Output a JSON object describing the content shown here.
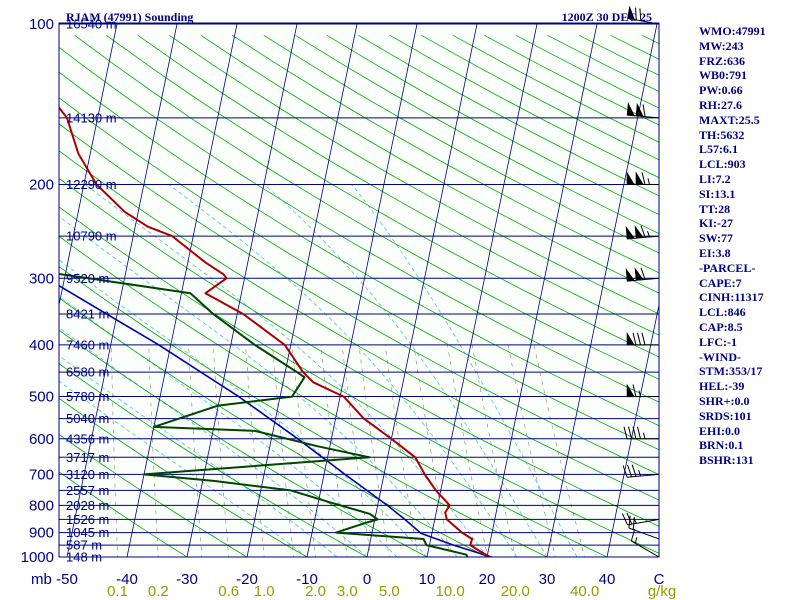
{
  "header": {
    "station_title": "RJAM (47991) Sounding",
    "time_title": "1200Z 30 DEC 25"
  },
  "indices": [
    "WMO:47991",
    "MW:243",
    "FRZ:636",
    "WB0:791",
    "PW:0.66",
    "RH:27.6",
    "MAXT:25.5",
    "TH:5632",
    "L57:6.1",
    "LCL:903",
    "LI:7.2",
    "SI:13.1",
    "TT:28",
    "KI:-27",
    "SW:77",
    "EI:3.8",
    "-PARCEL-",
    "CAPE:7",
    "CINH:11317",
    "LCL:846",
    "CAP:8.5",
    "LFC:-1",
    "-WIND-",
    "STM:353/17",
    "HEL:-39",
    "SHR+:0.0",
    "SRDS:101",
    "EHI:0.0",
    "BRN:0.1",
    "BSHR:131"
  ],
  "colors": {
    "background": "#fbfffb",
    "isobar": "#000080",
    "isotherm": "#000080",
    "dry_adiabat": "#00aa00",
    "moist_adiabat": "#55bbdd",
    "mixing_ratio": "#888866",
    "temperature": "#aa0000",
    "dewpoint": "#004400",
    "parcel": "#0000aa",
    "wind_barb": "#000000",
    "pressure_label": "#000080",
    "mixing_label": "#999900"
  },
  "chart_data": {
    "type": "skew-t",
    "title": "RJAM (47991) Sounding",
    "subtitle": "1200Z 30 DEC 25",
    "y_scale": "log",
    "ylim": [
      1000,
      100
    ],
    "xlim": [
      -50,
      50
    ],
    "pressure_axis_unit": "mb",
    "pressure_ticks": [
      100,
      200,
      300,
      400,
      500,
      600,
      700,
      800,
      900,
      1000
    ],
    "temperature_axis_unit": "C",
    "temperature_ticks": [
      -50,
      -40,
      -30,
      -20,
      -10,
      0,
      10,
      20,
      30,
      40
    ],
    "mixing_ratio_unit": "g/kg",
    "mixing_ratio_labels": [
      "0.1",
      "0.2",
      "0.6",
      "1.0",
      "2.0",
      "3.0",
      "5.0",
      "10.0",
      "20.0",
      "40.0"
    ],
    "height_labels": [
      {
        "p": 100,
        "label": "16540 m"
      },
      {
        "p": 150,
        "label": "14130 m"
      },
      {
        "p": 200,
        "label": "12290 m"
      },
      {
        "p": 250,
        "label": "10790 m"
      },
      {
        "p": 300,
        "label": "9520 m"
      },
      {
        "p": 350,
        "label": "8421 m"
      },
      {
        "p": 400,
        "label": "7460 m"
      },
      {
        "p": 450,
        "label": "6580 m"
      },
      {
        "p": 500,
        "label": "5780 m"
      },
      {
        "p": 550,
        "label": "5040 m"
      },
      {
        "p": 600,
        "label": "4356 m"
      },
      {
        "p": 650,
        "label": "3717 m"
      },
      {
        "p": 700,
        "label": "3120 m"
      },
      {
        "p": 750,
        "label": "2557 m"
      },
      {
        "p": 800,
        "label": "2028 m"
      },
      {
        "p": 850,
        "label": "1526 m"
      },
      {
        "p": 900,
        "label": "1045 m"
      },
      {
        "p": 950,
        "label": "587 m"
      },
      {
        "p": 1000,
        "label": "148 m"
      }
    ],
    "series": [
      {
        "key": "temperature",
        "points": [
          {
            "p": 1013,
            "t": 22.4
          },
          {
            "p": 1000,
            "t": 20.5
          },
          {
            "p": 975,
            "t": 18.6
          },
          {
            "p": 950,
            "t": 16.8
          },
          {
            "p": 925,
            "t": 16.9
          },
          {
            "p": 900,
            "t": 15.0
          },
          {
            "p": 850,
            "t": 12.0
          },
          {
            "p": 825,
            "t": 11.5
          },
          {
            "p": 800,
            "t": 12.0
          },
          {
            "p": 750,
            "t": 9.2
          },
          {
            "p": 700,
            "t": 6.8
          },
          {
            "p": 650,
            "t": 4.6
          },
          {
            "p": 600,
            "t": 0.0
          },
          {
            "p": 550,
            "t": -5.3
          },
          {
            "p": 500,
            "t": -9.4
          },
          {
            "p": 470,
            "t": -15.0
          },
          {
            "p": 450,
            "t": -17.0
          },
          {
            "p": 400,
            "t": -21.0
          },
          {
            "p": 350,
            "t": -29.0
          },
          {
            "p": 320,
            "t": -36.0
          },
          {
            "p": 300,
            "t": -33.0
          },
          {
            "p": 295,
            "t": -33.6
          },
          {
            "p": 280,
            "t": -37.1
          },
          {
            "p": 250,
            "t": -43.5
          },
          {
            "p": 240,
            "t": -47.9
          },
          {
            "p": 225,
            "t": -52.3
          },
          {
            "p": 200,
            "t": -57.9
          },
          {
            "p": 175,
            "t": -62.0
          },
          {
            "p": 150,
            "t": -65.1
          },
          {
            "p": 125,
            "t": -72.0
          },
          {
            "p": 100,
            "t": -81.3
          }
        ]
      },
      {
        "key": "dewpoint",
        "points": [
          {
            "p": 1013,
            "t": 17.0
          },
          {
            "p": 990,
            "t": 16.5
          },
          {
            "p": 950,
            "t": 9.5
          },
          {
            "p": 925,
            "t": 8.8
          },
          {
            "p": 900,
            "t": -6.0
          },
          {
            "p": 860,
            "t": -1.0
          },
          {
            "p": 850,
            "t": 0.5
          },
          {
            "p": 830,
            "t": -1.0
          },
          {
            "p": 790,
            "t": -8.0
          },
          {
            "p": 750,
            "t": -15.0
          },
          {
            "p": 720,
            "t": -28.0
          },
          {
            "p": 700,
            "t": -40.0
          },
          {
            "p": 690,
            "t": -33.0
          },
          {
            "p": 650,
            "t": -3.0
          },
          {
            "p": 620,
            "t": -12.0
          },
          {
            "p": 580,
            "t": -23.0
          },
          {
            "p": 570,
            "t": -40.0
          },
          {
            "p": 520,
            "t": -30.0
          },
          {
            "p": 500,
            "t": -18.0
          },
          {
            "p": 460,
            "t": -16.6
          },
          {
            "p": 450,
            "t": -18.0
          },
          {
            "p": 400,
            "t": -26.0
          },
          {
            "p": 350,
            "t": -34.0
          },
          {
            "p": 320,
            "t": -38.5
          },
          {
            "p": 300,
            "t": -56.0
          },
          {
            "p": 280,
            "t": -75.0
          },
          {
            "p": 250,
            "t": -87.0
          }
        ]
      },
      {
        "key": "parcel",
        "points": [
          {
            "p": 1013,
            "t": 22.4
          },
          {
            "p": 950,
            "t": 14.0
          },
          {
            "p": 903,
            "t": 8.2
          },
          {
            "p": 850,
            "t": 5.0
          },
          {
            "p": 800,
            "t": 1.6
          },
          {
            "p": 700,
            "t": -6.5
          },
          {
            "p": 600,
            "t": -15.6
          },
          {
            "p": 500,
            "t": -26.9
          },
          {
            "p": 400,
            "t": -42.0
          },
          {
            "p": 300,
            "t": -63.0
          },
          {
            "p": 250,
            "t": -75.0
          },
          {
            "p": 200,
            "t": -88.0
          },
          {
            "p": 150,
            "t": -103.0
          },
          {
            "p": 120,
            "t": -113.0
          }
        ]
      }
    ],
    "wind_barbs": [
      {
        "p": 1000,
        "dir": 300,
        "kt": 15
      },
      {
        "p": 925,
        "dir": 290,
        "kt": 20
      },
      {
        "p": 850,
        "dir": 260,
        "kt": 25
      },
      {
        "p": 700,
        "dir": 265,
        "kt": 35
      },
      {
        "p": 600,
        "dir": 270,
        "kt": 45
      },
      {
        "p": 500,
        "dir": 270,
        "kt": 65
      },
      {
        "p": 400,
        "dir": 270,
        "kt": 80
      },
      {
        "p": 300,
        "dir": 265,
        "kt": 110
      },
      {
        "p": 250,
        "dir": 265,
        "kt": 115
      },
      {
        "p": 200,
        "dir": 270,
        "kt": 115
      },
      {
        "p": 150,
        "dir": 275,
        "kt": 110
      },
      {
        "p": 100,
        "dir": 280,
        "kt": 70
      }
    ]
  }
}
